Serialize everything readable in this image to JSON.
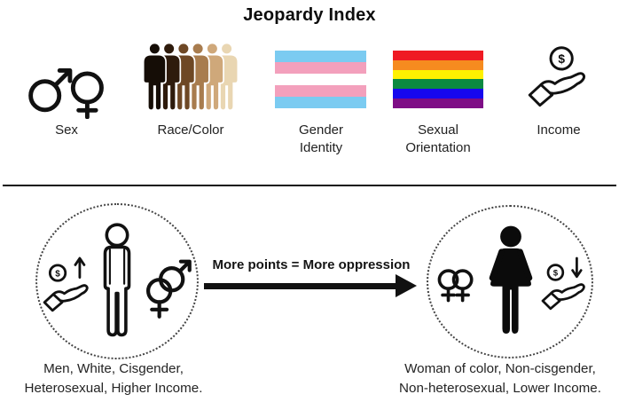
{
  "title": "Jeopardy Index",
  "categories": [
    {
      "id": "sex",
      "label": "Sex",
      "icon": "male-female-symbols"
    },
    {
      "id": "race-color",
      "label": "Race/Color",
      "icon": "people-skin-tone-gradient"
    },
    {
      "id": "gender-identity",
      "label": "Gender Identity",
      "icon": "transgender-flag"
    },
    {
      "id": "sexual-orientation",
      "label": "Sexual Orientation",
      "icon": "rainbow-flag"
    },
    {
      "id": "income",
      "label": "Income",
      "icon": "hand-holding-coin"
    }
  ],
  "icons": {
    "coin_text": "$"
  },
  "colors": {
    "ink": "#111111",
    "skin_tones": [
      "#150D06",
      "#2E1B0C",
      "#6E4825",
      "#A87C4E",
      "#CFA87A",
      "#E9D6B2"
    ],
    "trans_flag": [
      "#7BCBF1",
      "#F3A0BC",
      "#FFFFFF",
      "#F3A0BC",
      "#7BCBF1"
    ],
    "rainbow_flag": [
      "#EF1A23",
      "#F68B1F",
      "#FFF100",
      "#0B8A41",
      "#1607EE",
      "#7E0D86"
    ]
  },
  "comparison": {
    "arrow_label": "More points = More oppression",
    "left": {
      "caption_line1": "Men, White, Cisgender,",
      "caption_line2": "Heterosexual, Higher Income."
    },
    "right": {
      "caption_line1": "Woman of color,  Non-cisgender,",
      "caption_line2": "Non-heterosexual, Lower Income."
    }
  }
}
